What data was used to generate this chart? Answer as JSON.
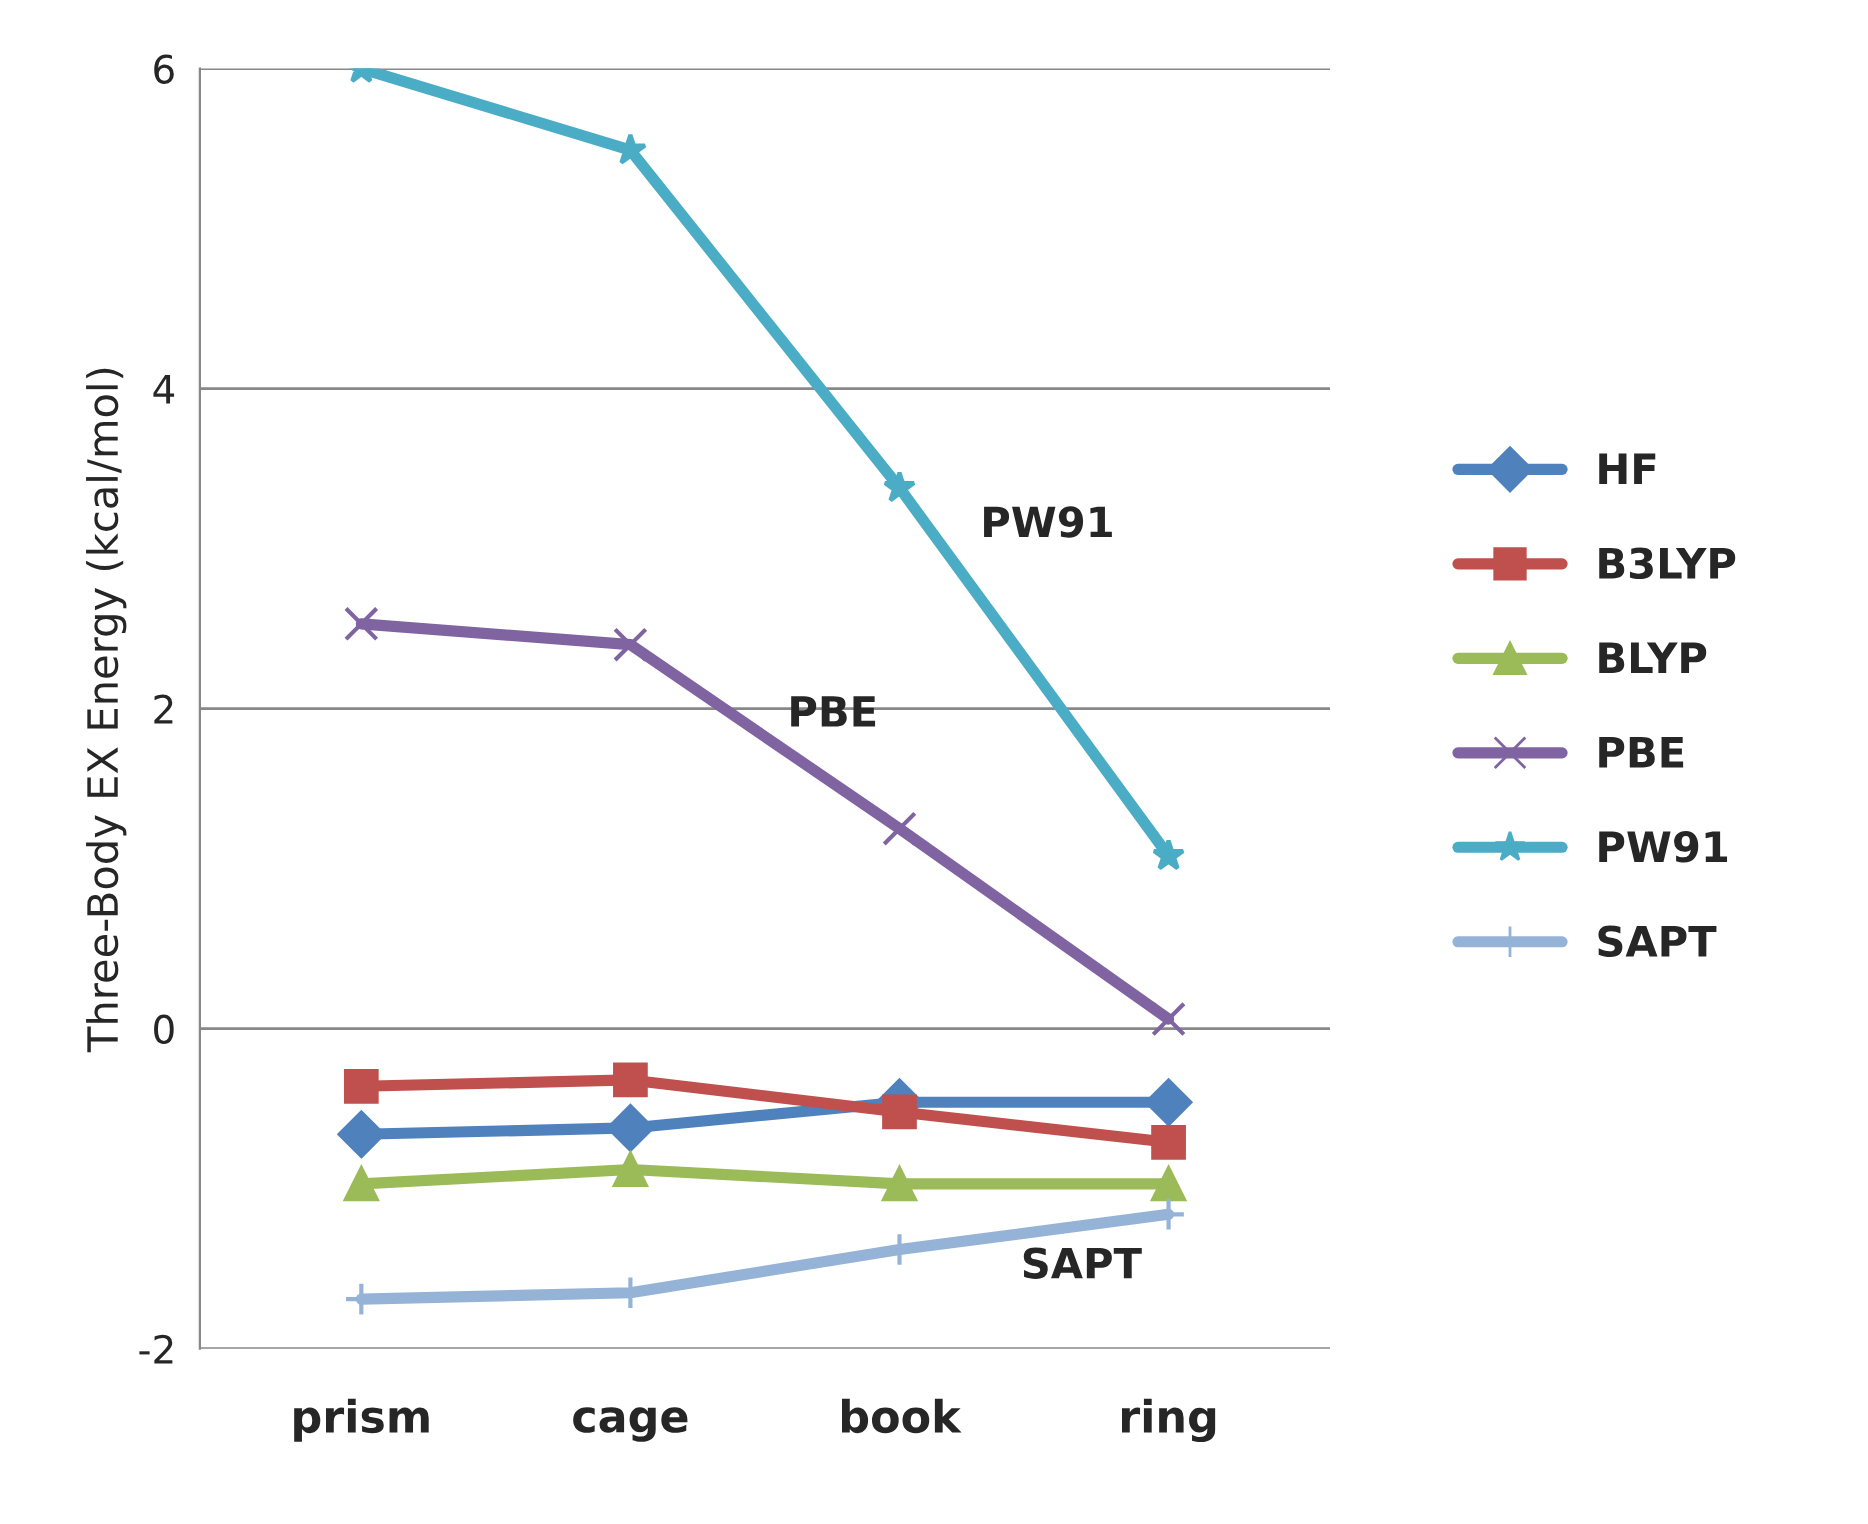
{
  "chart_data": {
    "type": "line",
    "ylabel": "Three-Body EX Energy (kcal/mol)",
    "categories": [
      "prism",
      "cage",
      "book",
      "ring"
    ],
    "series": [
      {
        "name": "HF",
        "color": "#4f81bd",
        "marker": "diamond",
        "values": [
          -0.66,
          -0.62,
          -0.46,
          -0.46
        ]
      },
      {
        "name": "B3LYP",
        "color": "#c0504d",
        "marker": "square",
        "values": [
          -0.36,
          -0.32,
          -0.52,
          -0.71
        ]
      },
      {
        "name": "BLYP",
        "color": "#9bbb59",
        "marker": "triangle",
        "values": [
          -0.97,
          -0.88,
          -0.97,
          -0.97
        ]
      },
      {
        "name": "PBE",
        "color": "#8064a2",
        "marker": "cross",
        "values": [
          2.53,
          2.4,
          1.25,
          0.06
        ]
      },
      {
        "name": "PW91",
        "color": "#4bacc6",
        "marker": "star",
        "values": [
          6.0,
          5.49,
          3.38,
          1.08
        ]
      },
      {
        "name": "SAPT",
        "color": "#95b3d7",
        "marker": "plus",
        "values": [
          -1.69,
          -1.65,
          -1.38,
          -1.16
        ]
      }
    ],
    "annotations": [
      "PW91",
      "PBE",
      "SAPT"
    ],
    "ylim": [
      -2,
      6
    ],
    "yticks": [
      -2,
      0,
      2,
      4,
      6
    ],
    "grid": "y",
    "legend": "right"
  }
}
